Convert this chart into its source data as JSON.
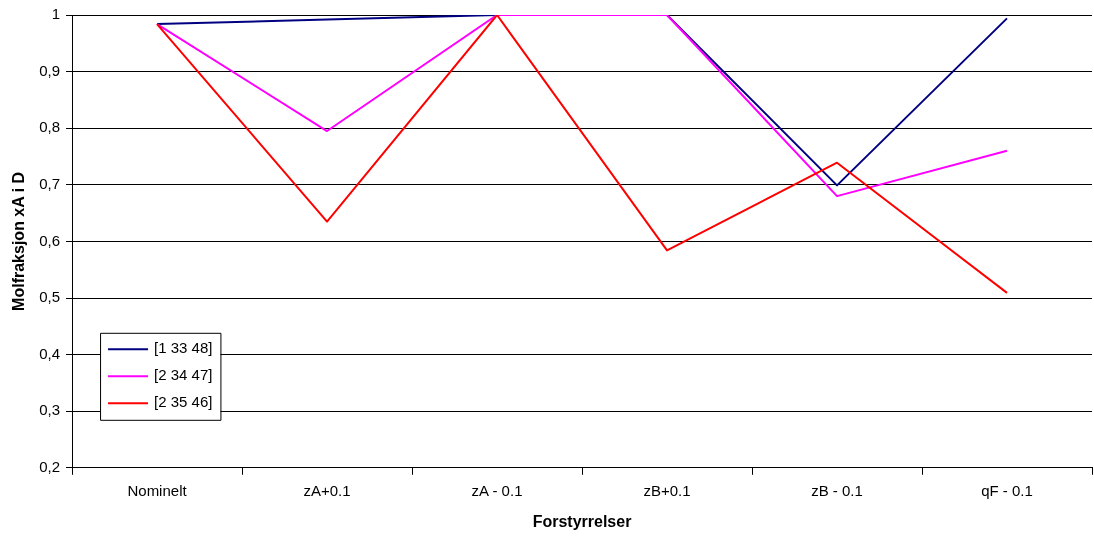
{
  "chart_data": {
    "type": "line",
    "xlabel": "Forstyrrelser",
    "ylabel": "Molfraksjon xA i D",
    "categories": [
      "Nominelt",
      "zA+0.1",
      "zA - 0.1",
      "zB+0.1",
      "zB - 0.1",
      "qF - 0.1"
    ],
    "series": [
      {
        "name": "[1 33 48]",
        "color": "#000080",
        "values": [
          0.984,
          0.992,
          1,
          1,
          0.699,
          0.994
        ]
      },
      {
        "name": "[2 34 47]",
        "color": "#ff00ff",
        "values": [
          0.984,
          0.795,
          1,
          1,
          0.68,
          0.76
        ]
      },
      {
        "name": "[2 35 46]",
        "color": "#ff0000",
        "values": [
          0.984,
          0.635,
          1,
          0.584,
          0.739,
          0.509
        ]
      }
    ],
    "ylim": [
      0.2,
      1
    ],
    "yticks": [
      {
        "value": 0.2,
        "label": "0,2"
      },
      {
        "value": 0.3,
        "label": "0,3"
      },
      {
        "value": 0.4,
        "label": "0,4"
      },
      {
        "value": 0.5,
        "label": "0,5"
      },
      {
        "value": 0.6,
        "label": "0,6"
      },
      {
        "value": 0.7,
        "label": "0,7"
      },
      {
        "value": 0.8,
        "label": "0,8"
      },
      {
        "value": 0.9,
        "label": "0,9"
      },
      {
        "value": 1,
        "label": "1"
      }
    ],
    "grid": "y",
    "legend": "bottom left",
    "marker": "none",
    "line_style": "solid"
  }
}
